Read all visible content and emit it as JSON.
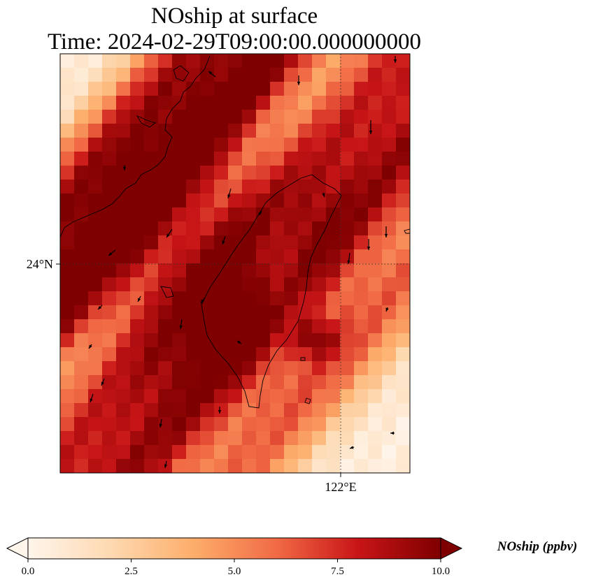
{
  "title": {
    "line1": "NOship at surface",
    "line2": "Time: 2024-02-29T09:00:00.000000000"
  },
  "map": {
    "lat_label": "24°N",
    "lon_label": "122°E",
    "gridlines": "dotted",
    "field_colormap": [
      "#fff5eb",
      "#fdd9b1",
      "#fdae6b",
      "#f16b45",
      "#c81517",
      "#7f0000"
    ],
    "vector_color": "#000000",
    "coastline_color": "#000000"
  },
  "colorbar": {
    "label": "NOship (ppbv)",
    "ticks": [
      "0.0",
      "2.5",
      "5.0",
      "7.5",
      "10.0"
    ],
    "range": [
      0,
      10
    ],
    "extend": "both"
  }
}
